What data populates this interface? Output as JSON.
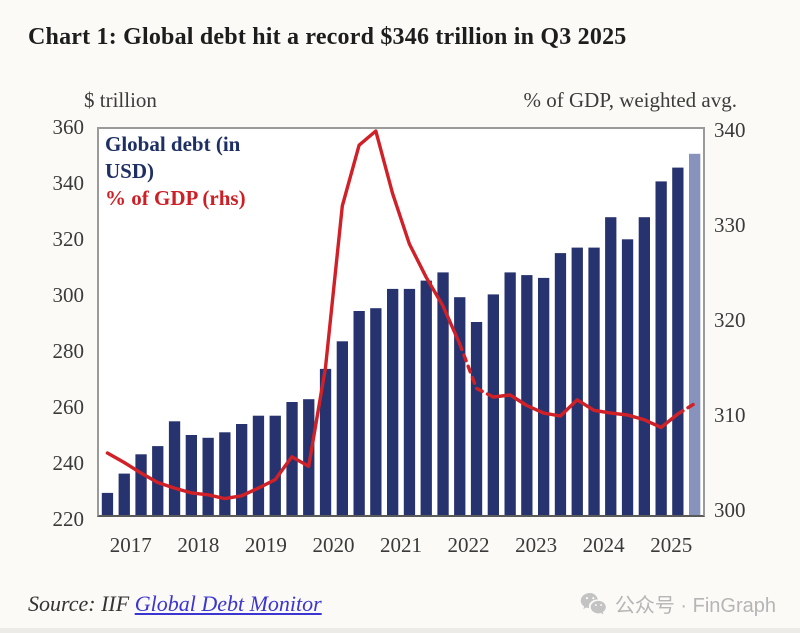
{
  "title": "Chart 1: Global debt hit a record $346 trillion in Q3 2025",
  "axes": {
    "left_caption": "$ trillion",
    "right_caption": "% of GDP, weighted avg.",
    "left_ticks": [
      "360",
      "340",
      "320",
      "300",
      "280",
      "260",
      "240",
      "220"
    ],
    "right_ticks": [
      "340",
      "330",
      "320",
      "310",
      "300"
    ],
    "x_ticks": [
      "2017",
      "2018",
      "2019",
      "2020",
      "2021",
      "2022",
      "2023",
      "2024",
      "2025"
    ]
  },
  "legend": {
    "series1_label": "Global debt (in USD)",
    "series2_label": "% of GDP (rhs)"
  },
  "footer": {
    "source_prefix": "Source: IIF ",
    "source_link": "Global Debt Monitor",
    "watermark_text": "公众号 · FinGraph"
  },
  "colors": {
    "bar": "#27336e",
    "bar_highlight": "#8793bd",
    "line": "#cf2127",
    "legend_navy": "#1e2f63",
    "link_blue": "#3b35d1",
    "watermark_gray": "#b5b5b5"
  },
  "chart_data": {
    "type": "bar",
    "note_line_type": "line overlay on right axis; final segment and 2022 mid-descent drawn dashed; final bar lighter (latest value)",
    "x": [
      "2017 Q1",
      "2017 Q2",
      "2017 Q3",
      "2017 Q4",
      "2018 Q1",
      "2018 Q2",
      "2018 Q3",
      "2018 Q4",
      "2019 Q1",
      "2019 Q2",
      "2019 Q3",
      "2019 Q4",
      "2020 Q1",
      "2020 Q2",
      "2020 Q3",
      "2020 Q4",
      "2021 Q1",
      "2021 Q2",
      "2021 Q3",
      "2021 Q4",
      "2022 Q1",
      "2022 Q2",
      "2022 Q3",
      "2022 Q4",
      "2023 Q1",
      "2023 Q2",
      "2023 Q3",
      "2023 Q4",
      "2024 Q1",
      "2024 Q2",
      "2024 Q3",
      "2024 Q4",
      "2025 Q1",
      "2025 Q2",
      "2025 Q3",
      "2025 Q4"
    ],
    "series": [
      {
        "name": "Global debt (in USD)",
        "type": "bar",
        "axis": "left",
        "values": [
          228,
          235,
          242,
          245,
          254,
          249,
          248,
          250,
          253,
          256,
          256,
          261,
          262,
          273,
          283,
          294,
          295,
          302,
          302,
          305,
          308,
          299,
          290,
          300,
          308,
          307,
          306,
          315,
          317,
          317,
          328,
          320,
          328,
          341,
          346,
          351
        ],
        "highlight_last": true
      },
      {
        "name": "% of GDP (rhs)",
        "type": "line",
        "axis": "right",
        "values": [
          306.0,
          305.0,
          303.9,
          302.9,
          302.3,
          301.8,
          301.6,
          301.2,
          301.5,
          302.3,
          303.2,
          305.6,
          304.6,
          315.0,
          332.0,
          338.4,
          339.9,
          333.3,
          328.0,
          324.5,
          321.5,
          317.5,
          312.8,
          311.9,
          312.1,
          311.0,
          310.2,
          309.9,
          311.6,
          310.5,
          310.2,
          310.0,
          309.5,
          308.7,
          310.1,
          311.2
        ],
        "dashed_segments": [
          [
            21,
            23
          ],
          [
            34,
            35
          ]
        ]
      }
    ],
    "left_axis": {
      "label": "$ trillion",
      "range": [
        220,
        360
      ],
      "tick_step": 20
    },
    "right_axis": {
      "label": "% of GDP, weighted avg.",
      "range": [
        300,
        340
      ],
      "tick_step": 10
    },
    "title": "Chart 1: Global debt hit a record $346 trillion in Q3 2025",
    "grid": false,
    "legend_position": "top-left inside plot"
  }
}
